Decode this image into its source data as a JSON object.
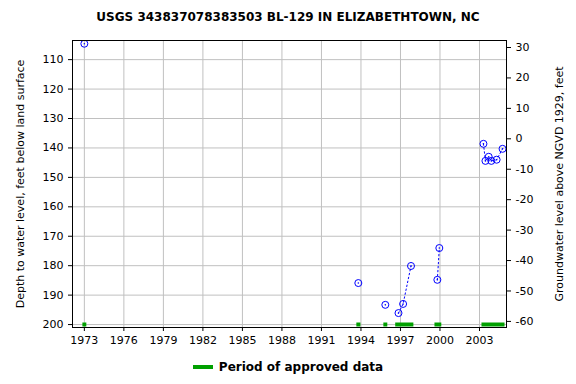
{
  "chart_data": {
    "type": "scatter",
    "title": "USGS 343837078383503 BL-129 IN ELIZABETHTOWN, NC",
    "y_label": "Depth to water level, feet below land surface",
    "y2_label": "Groundwater level above NGVD 1929, feet",
    "x": [
      1973.0,
      1973.0,
      1993.8,
      1993.8,
      1995.85,
      1995.85,
      1996.85,
      1997.2,
      1997.8,
      1997.8,
      1999.8,
      1999.95,
      1999.95,
      2003.3,
      2003.45,
      2003.7,
      2003.9,
      2004.3,
      2004.75
    ],
    "values": [
      104.6,
      null,
      185.9,
      null,
      193.3,
      null,
      196.1,
      193.0,
      180.1,
      null,
      184.8,
      174.0,
      null,
      138.6,
      144.4,
      143.0,
      144.4,
      144.0,
      140.3
    ],
    "color": "#0000ff",
    "marker": "circle",
    "line_style": "dotted",
    "approved_periods": {
      "name": "Period of approved data",
      "color": "#00a000",
      "periods": [
        [
          1972.85,
          1973.15
        ],
        [
          1993.65,
          1993.96
        ],
        [
          1995.7,
          1996.0
        ],
        [
          1996.6,
          1997.98
        ],
        [
          1999.58,
          2000.1
        ],
        [
          2003.15,
          2004.9
        ]
      ]
    },
    "legend": "bottom",
    "xlim": [
      1972.1,
      2005.05
    ],
    "xticks": [
      1973,
      1976,
      1979,
      1982,
      1985,
      1988,
      1991,
      1994,
      1997,
      2000,
      2003
    ],
    "ylim": [
      103.5,
      201
    ],
    "yticks": [
      110,
      120,
      130,
      140,
      150,
      160,
      170,
      180,
      190,
      200
    ],
    "y2lim": [
      -62,
      32.3
    ],
    "y2ticks": [
      30,
      20,
      10,
      0,
      -10,
      -20,
      -30,
      -40,
      -50,
      -60
    ],
    "grid": true
  }
}
